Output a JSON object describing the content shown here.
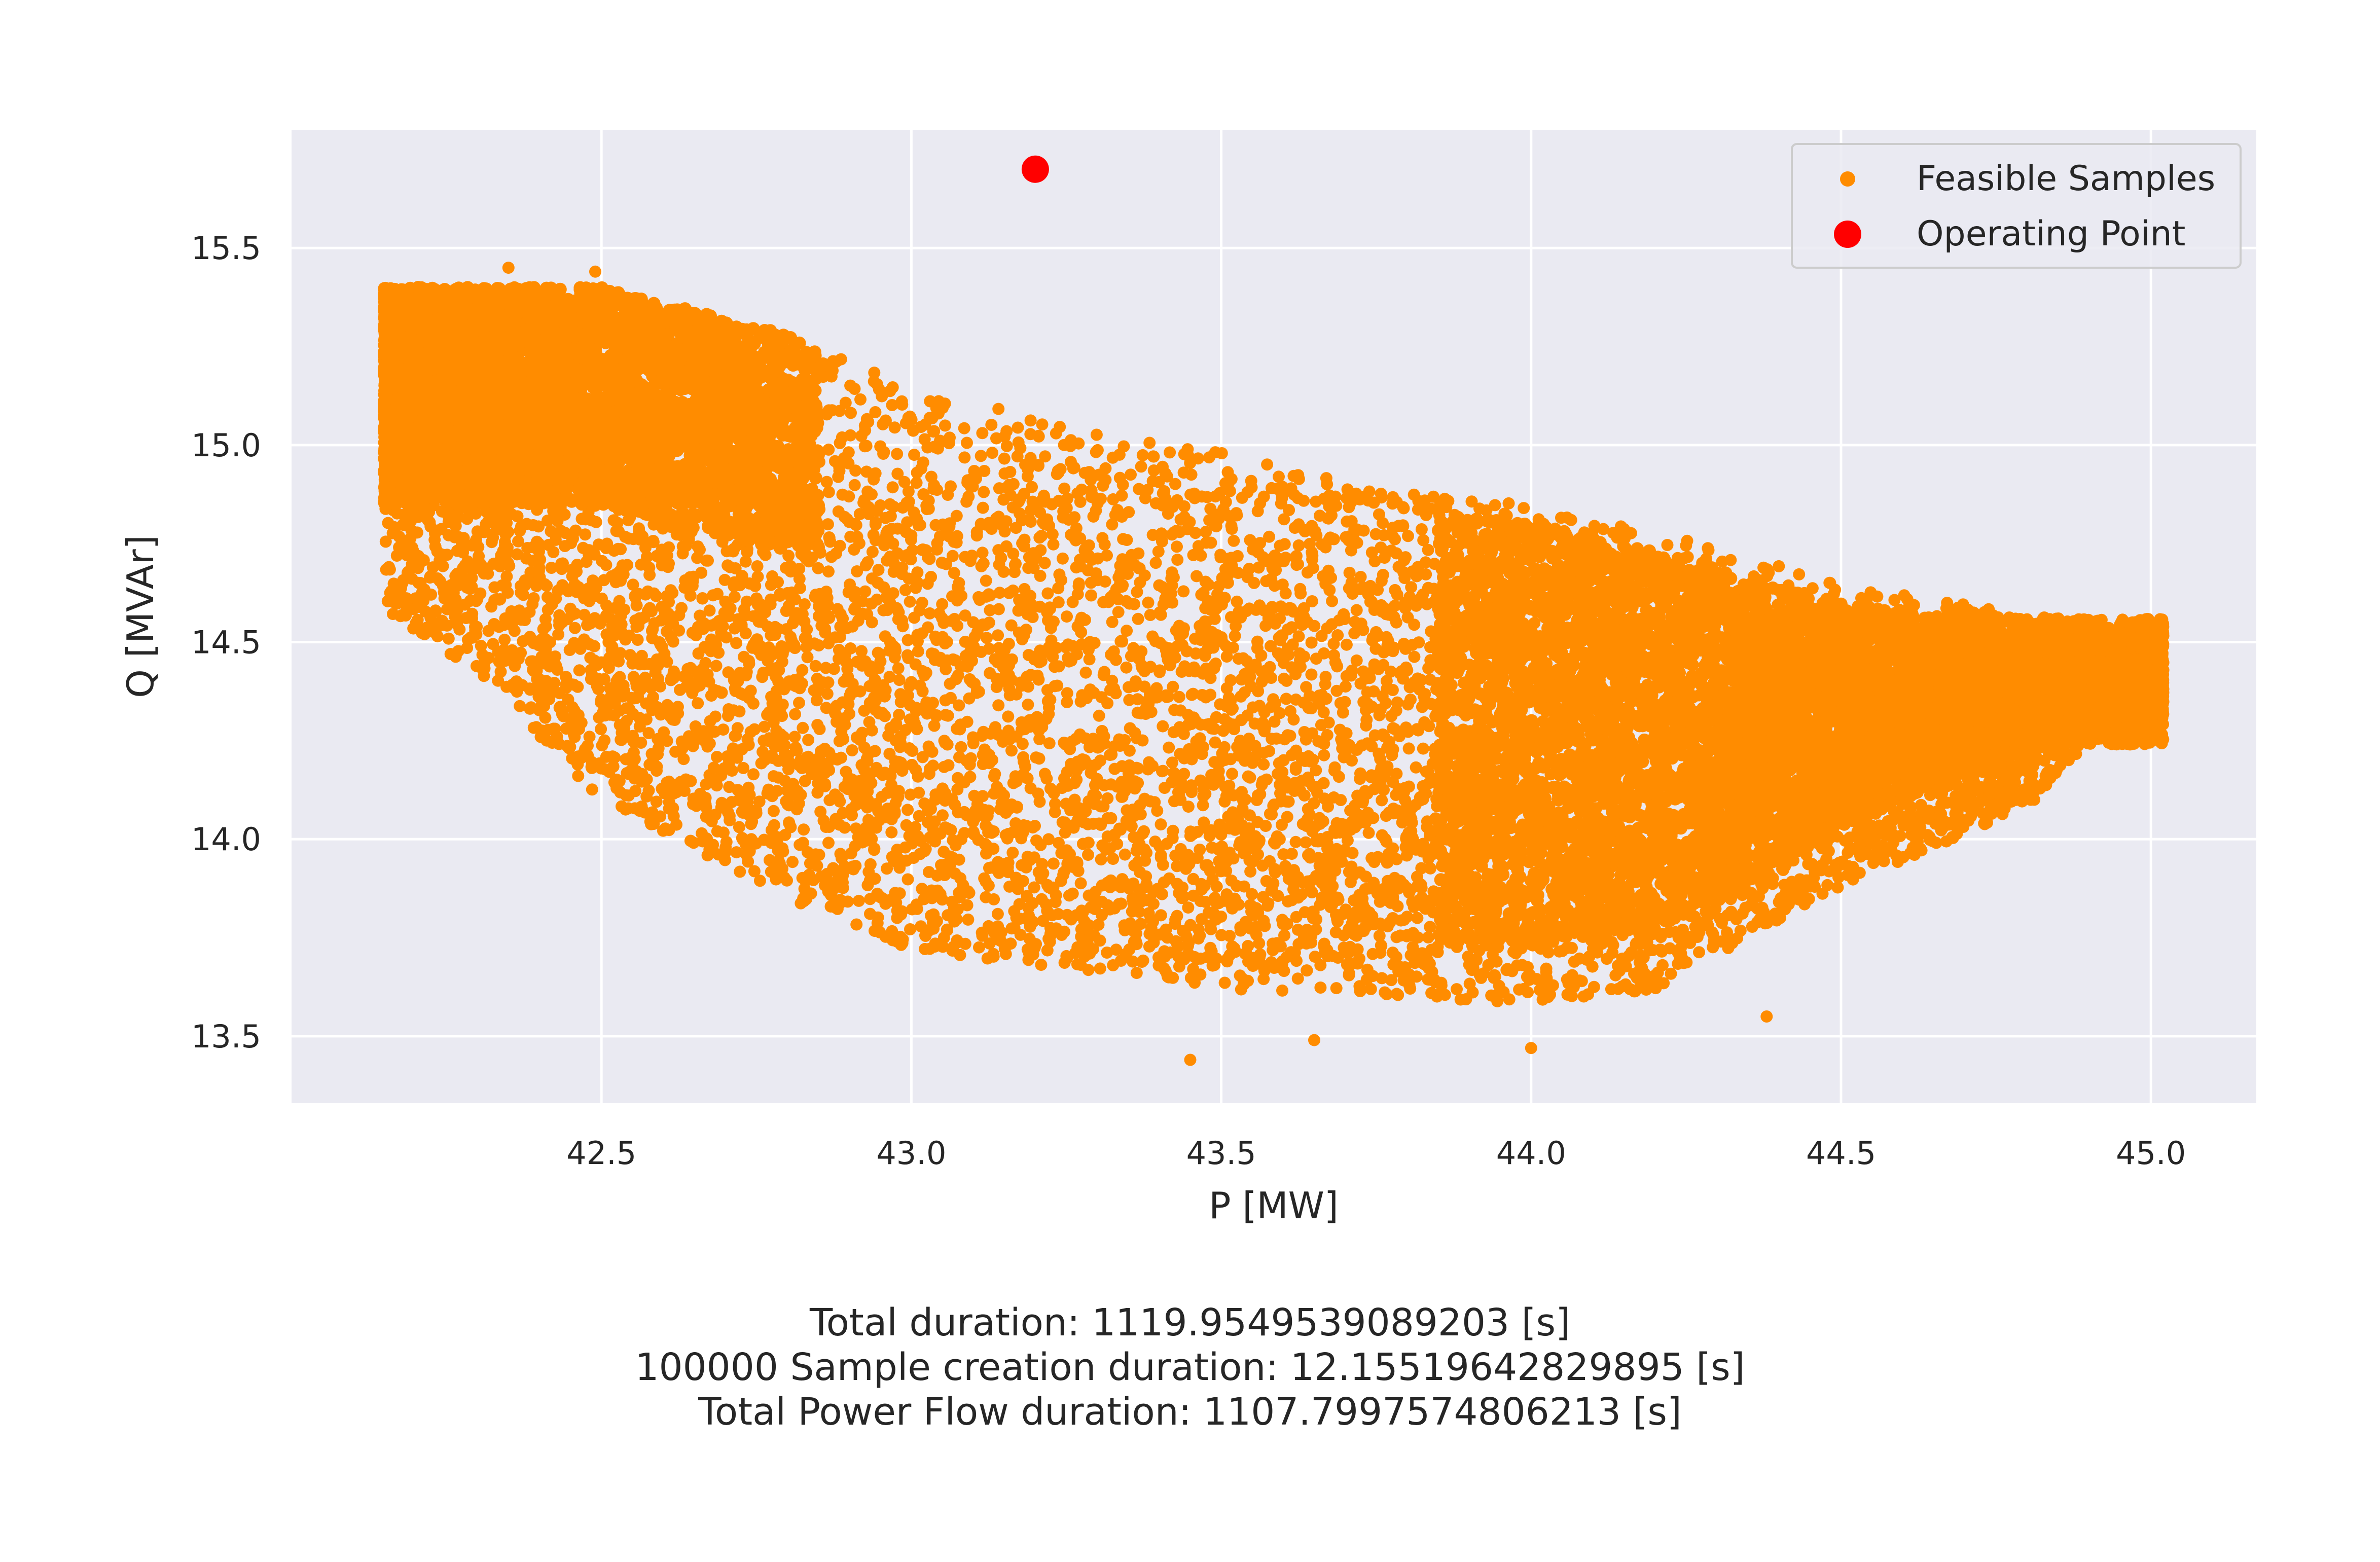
{
  "chart_data": {
    "type": "scatter",
    "xlabel": "P [MW]",
    "ylabel": "Q [MVAr]",
    "xlim": [
      42.0,
      45.17
    ],
    "ylim": [
      13.33,
      15.8
    ],
    "xticks": [
      "42.5",
      "43.0",
      "43.5",
      "44.0",
      "44.5",
      "45.0"
    ],
    "yticks": [
      "13.5",
      "14.0",
      "14.5",
      "15.0",
      "15.5"
    ],
    "xtick_values": [
      42.5,
      43.0,
      43.5,
      44.0,
      44.5,
      45.0
    ],
    "ytick_values": [
      13.5,
      14.0,
      14.5,
      15.0,
      15.5
    ],
    "grid": true,
    "legend_position": "top-right",
    "colors": {
      "background": "#eaeaf2",
      "grid": "#ffffff",
      "feasible": "#ff8c00",
      "operating": "#ff0000",
      "legend_border": "#cccccc"
    },
    "series": [
      {
        "name": "Feasible Samples",
        "kind": "point cloud",
        "count": 100000,
        "color": "#ff8c00",
        "x_range": [
          42.15,
          45.02
        ],
        "y_range": [
          13.44,
          15.45
        ],
        "upper_envelope": [
          [
            42.15,
            15.4
          ],
          [
            42.5,
            15.4
          ],
          [
            42.8,
            15.28
          ],
          [
            43.0,
            15.15
          ],
          [
            43.3,
            15.03
          ],
          [
            43.5,
            14.98
          ],
          [
            43.8,
            14.88
          ],
          [
            44.0,
            14.85
          ],
          [
            44.2,
            14.78
          ],
          [
            44.5,
            14.65
          ],
          [
            44.8,
            14.57
          ],
          [
            45.0,
            14.54
          ]
        ],
        "lower_envelope": [
          [
            42.15,
            14.58
          ],
          [
            42.3,
            14.42
          ],
          [
            42.5,
            14.1
          ],
          [
            42.8,
            13.85
          ],
          [
            43.0,
            13.72
          ],
          [
            43.3,
            13.66
          ],
          [
            43.5,
            13.62
          ],
          [
            43.8,
            13.6
          ],
          [
            44.0,
            13.58
          ],
          [
            44.2,
            13.62
          ],
          [
            44.5,
            13.88
          ],
          [
            44.8,
            14.08
          ],
          [
            45.0,
            14.42
          ]
        ]
      },
      {
        "name": "Operating Point",
        "color": "#ff0000",
        "points": [
          [
            43.2,
            15.7
          ]
        ]
      }
    ]
  },
  "caption": {
    "line1": "Total duration: 1119.9549539089203 [s]",
    "line2": "100000 Sample creation duration: 12.15519642829895 [s]",
    "line3": "Total Power Flow duration: 1107.7997574806213 [s]"
  }
}
